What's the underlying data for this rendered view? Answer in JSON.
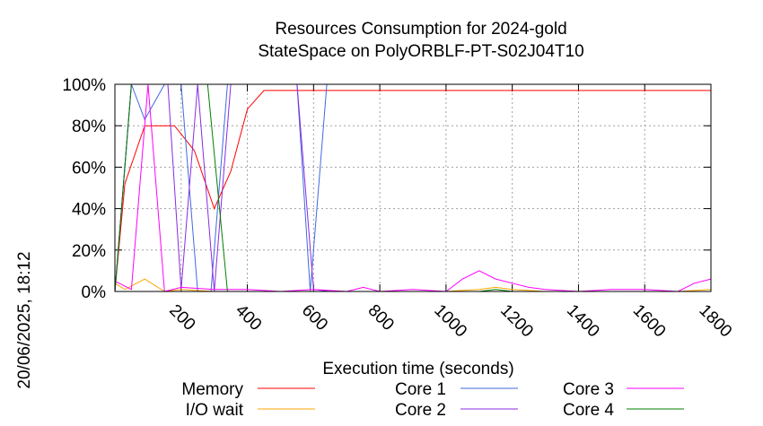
{
  "chart_data": {
    "type": "line",
    "title": "Resources Consumption for 2024-gold",
    "subtitle": "StateSpace on PolyORBLF-PT-S02J04T10",
    "xlabel": "Execution time (seconds)",
    "ylabel": "",
    "side_label": "20/06/2025, 18:12",
    "xlim": [
      0,
      1800
    ],
    "ylim": [
      0,
      100
    ],
    "x_ticks": [
      200,
      400,
      600,
      800,
      1000,
      1200,
      1400,
      1600,
      1800
    ],
    "y_ticks": [
      0,
      20,
      40,
      60,
      80,
      100
    ],
    "y_tick_labels": [
      "0%",
      "20%",
      "40%",
      "60%",
      "80%",
      "100%"
    ],
    "grid": true,
    "legend_position": "bottom",
    "series": [
      {
        "name": "Memory",
        "color": "#ff0000",
        "x": [
          0,
          30,
          90,
          180,
          240,
          300,
          350,
          400,
          450,
          500,
          600,
          700,
          800,
          900,
          1000,
          1100,
          1200,
          1300,
          1400,
          1500,
          1600,
          1700,
          1800
        ],
        "y": [
          0,
          52,
          80,
          80,
          68,
          40,
          58,
          88,
          97,
          97,
          97,
          97,
          97,
          97,
          97,
          97,
          97,
          97,
          97,
          97,
          97,
          97,
          97
        ]
      },
      {
        "name": "I/O wait",
        "color": "#ffa500",
        "x": [
          0,
          30,
          90,
          150,
          200,
          300,
          400,
          600,
          700,
          800,
          1000,
          1100,
          1150,
          1200,
          1300,
          1700,
          1800
        ],
        "y": [
          4,
          1,
          6,
          0,
          1,
          0,
          0,
          0,
          0,
          0,
          0,
          1,
          2,
          1,
          0,
          0,
          1
        ]
      },
      {
        "name": "Core 1",
        "color": "#4169e1",
        "x": [
          0,
          50,
          90,
          150,
          200,
          250,
          290,
          340,
          400,
          550,
          590,
          640,
          1800
        ],
        "y": [
          0,
          100,
          83,
          100,
          100,
          0,
          0,
          100,
          100,
          100,
          0,
          100,
          100
        ]
      },
      {
        "name": "Core 2",
        "color": "#8a2be2",
        "x": [
          0,
          50,
          100,
          160,
          200,
          250,
          300,
          350,
          400,
          500,
          550,
          600,
          650,
          1800
        ],
        "y": [
          0,
          100,
          100,
          100,
          1,
          100,
          0,
          100,
          100,
          100,
          100,
          1,
          0,
          0
        ]
      },
      {
        "name": "Core 3",
        "color": "#ff00ff",
        "x": [
          0,
          50,
          100,
          150,
          200,
          300,
          400,
          500,
          600,
          700,
          750,
          800,
          900,
          1000,
          1050,
          1100,
          1150,
          1200,
          1250,
          1300,
          1400,
          1500,
          1600,
          1700,
          1750,
          1800
        ],
        "y": [
          5,
          1,
          100,
          0,
          2,
          1,
          1,
          0,
          1,
          0,
          2,
          0,
          1,
          0,
          6,
          10,
          6,
          4,
          2,
          1,
          0,
          1,
          1,
          0,
          4,
          6
        ]
      },
      {
        "name": "Core 4",
        "color": "#008000",
        "x": [
          0,
          50,
          150,
          280,
          340,
          400,
          600,
          1100,
          1150,
          1200,
          1800
        ],
        "y": [
          0,
          100,
          100,
          100,
          0,
          0,
          0,
          0,
          1,
          0,
          0
        ]
      }
    ]
  }
}
